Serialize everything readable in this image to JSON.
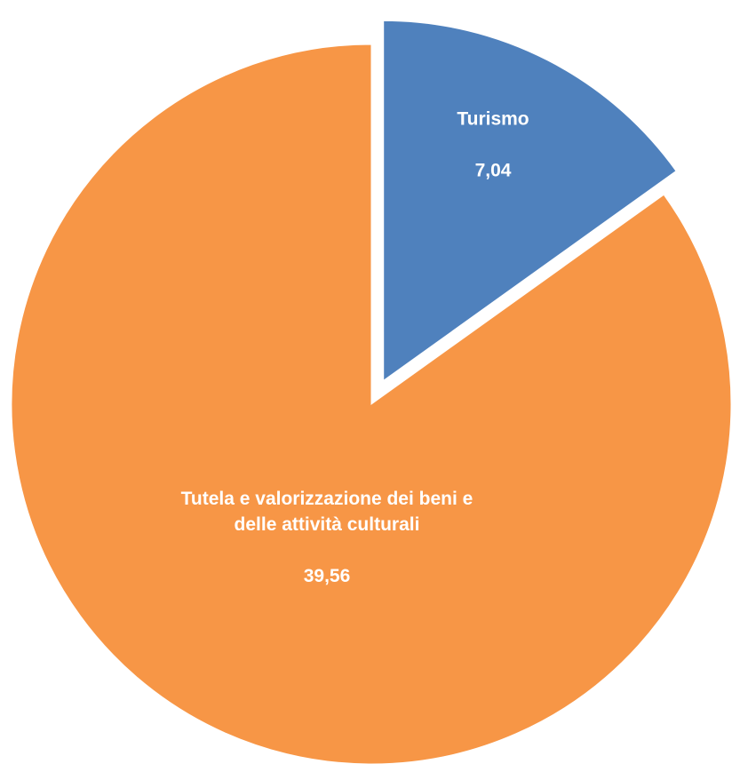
{
  "chart_data": {
    "type": "pie",
    "slices": [
      {
        "label": "Turismo",
        "value": 7.04,
        "value_label": "7,04",
        "color": "#4f81bd",
        "exploded": true
      },
      {
        "label": "Tutela e valorizzazione dei beni e delle attività culturali",
        "value": 39.56,
        "value_label": "39,56",
        "color": "#f79646",
        "exploded": false
      }
    ],
    "start_angle": "12 o'clock",
    "direction": "clockwise",
    "legend": "none",
    "data_labels": "inside"
  }
}
